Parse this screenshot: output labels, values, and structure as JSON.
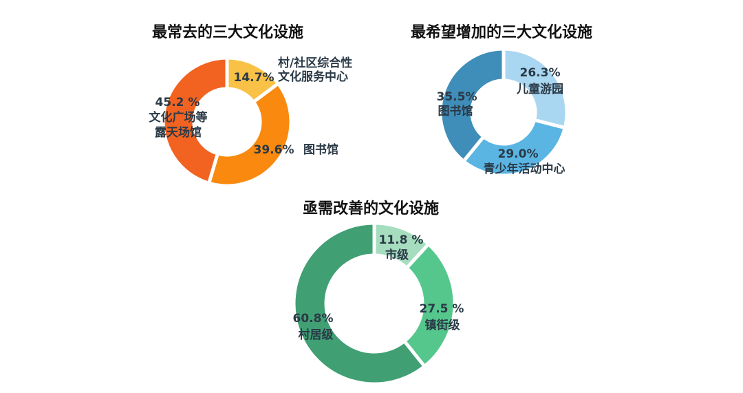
{
  "chart_data": [
    {
      "type": "pie",
      "title": "最常去的三大文化设施",
      "slices": [
        {
          "pct": "14.7%",
          "value": 14.7,
          "label_lines": [
            "村/社区综合性",
            "文化服务中心"
          ],
          "color": "#F9C146"
        },
        {
          "pct": "39.6%",
          "value": 39.6,
          "label_lines": [
            "图书馆"
          ],
          "color": "#F98A0F"
        },
        {
          "pct": "45.2 %",
          "value": 45.2,
          "label_lines": [
            "文化广场等",
            "露天场馆"
          ],
          "color": "#F26321"
        }
      ]
    },
    {
      "type": "pie",
      "title": "最希望增加的三大文化设施",
      "slices": [
        {
          "pct": "26.3%",
          "value": 26.3,
          "label_lines": [
            "儿童游园"
          ],
          "color": "#A9D6F1"
        },
        {
          "pct": "29.0%",
          "value": 29.0,
          "label_lines": [
            "青少年活动中心"
          ],
          "color": "#5AB5E3"
        },
        {
          "pct": "35.5%",
          "value": 35.5,
          "label_lines": [
            "图书馆"
          ],
          "color": "#3F8DB9"
        }
      ]
    },
    {
      "type": "pie",
      "title": "亟需改善的文化设施",
      "slices": [
        {
          "pct": "11.8 %",
          "value": 11.8,
          "label_lines": [
            "市级"
          ],
          "color": "#A6DDBF"
        },
        {
          "pct": "27.5 %",
          "value": 27.5,
          "label_lines": [
            "镇街级"
          ],
          "color": "#55C78D"
        },
        {
          "pct": "60.8%",
          "value": 60.8,
          "label_lines": [
            "村居级"
          ],
          "color": "#40A073"
        }
      ]
    }
  ]
}
